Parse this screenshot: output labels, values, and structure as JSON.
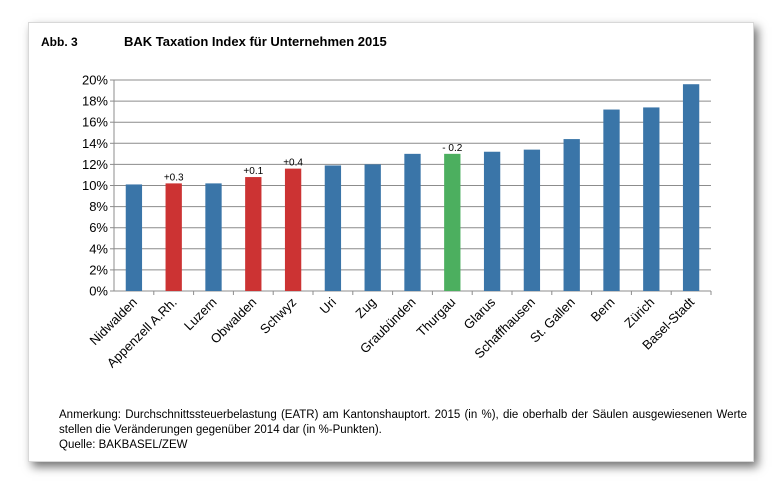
{
  "figure": {
    "label": "Abb. 3",
    "title": "BAK Taxation Index für Unternehmen 2015"
  },
  "chart_data": {
    "type": "bar",
    "categories": [
      "Nidwalden",
      "Appenzell A.Rh.",
      "Luzern",
      "Obwalden",
      "Schwyz",
      "Uri",
      "Zug",
      "Graubünden",
      "Thurgau",
      "Glarus",
      "Schaffhausen",
      "St. Gallen",
      "Bern",
      "Zürich",
      "Basel-Stadt"
    ],
    "values": [
      10.1,
      10.2,
      10.2,
      10.8,
      11.6,
      11.9,
      12.0,
      13.0,
      13.0,
      13.2,
      13.4,
      14.4,
      17.2,
      17.4,
      19.6
    ],
    "colors": [
      "#3a75a8",
      "#cc3333",
      "#3a75a8",
      "#cc3333",
      "#cc3333",
      "#3a75a8",
      "#3a75a8",
      "#3a75a8",
      "#4caf5f",
      "#3a75a8",
      "#3a75a8",
      "#3a75a8",
      "#3a75a8",
      "#3a75a8",
      "#3a75a8"
    ],
    "annotations": [
      "",
      "+0.3",
      "",
      "+0.1",
      "+0.4",
      "",
      "",
      "",
      "- 0.2",
      "",
      "",
      "",
      "",
      "",
      ""
    ],
    "ylim": [
      0,
      20
    ],
    "yticks": [
      "0%",
      "2%",
      "4%",
      "6%",
      "8%",
      "10%",
      "12%",
      "14%",
      "16%",
      "18%",
      "20%"
    ],
    "grid": true,
    "legend": "none",
    "xlabel": "",
    "ylabel": ""
  },
  "footnote": {
    "note": "Anmerkung: Durchschnittssteuerbelastung (EATR) am Kantonshauptort. 2015 (in %), die oberhalb der Säulen ausgewiesenen Werte stellen die Veränderungen gegenüber 2014 dar (in %-Punkten).",
    "source": "Quelle: BAKBASEL/ZEW"
  }
}
